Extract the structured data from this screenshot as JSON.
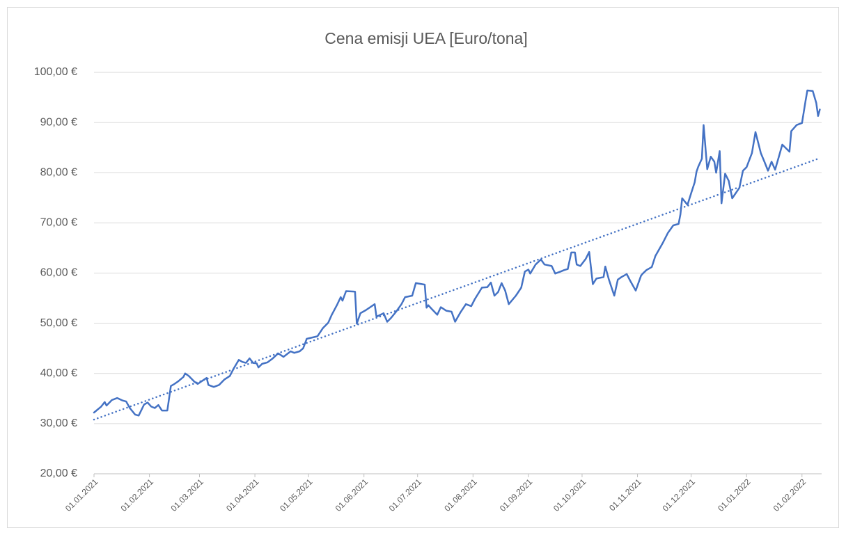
{
  "chart_data": {
    "type": "line",
    "title": "Cena emisji UEA [Euro/tona]",
    "grid": true,
    "xlim": [
      "2021-01-01",
      "2022-02-12"
    ],
    "xticks": [
      {
        "value": "2021-01-01",
        "label": "01.01.2021"
      },
      {
        "value": "2021-02-01",
        "label": "01.02.2021"
      },
      {
        "value": "2021-03-01",
        "label": "01.03.2021"
      },
      {
        "value": "2021-04-01",
        "label": "01.04.2021"
      },
      {
        "value": "2021-05-01",
        "label": "01.05.2021"
      },
      {
        "value": "2021-06-01",
        "label": "01.06.2021"
      },
      {
        "value": "2021-07-01",
        "label": "01.07.2021"
      },
      {
        "value": "2021-08-01",
        "label": "01.08.2021"
      },
      {
        "value": "2021-09-01",
        "label": "01.09.2021"
      },
      {
        "value": "2021-10-01",
        "label": "01.10.2021"
      },
      {
        "value": "2021-11-01",
        "label": "01.11.2021"
      },
      {
        "value": "2021-12-01",
        "label": "01.12.2021"
      },
      {
        "value": "2022-01-01",
        "label": "01.01.2022"
      },
      {
        "value": "2022-02-01",
        "label": "01.02.2022"
      }
    ],
    "ylim": [
      20,
      100
    ],
    "yticks": [
      {
        "value": 20,
        "label": "20,00 €"
      },
      {
        "value": 30,
        "label": "30,00 €"
      },
      {
        "value": 40,
        "label": "40,00 €"
      },
      {
        "value": 50,
        "label": "50,00 €"
      },
      {
        "value": 60,
        "label": "60,00 €"
      },
      {
        "value": 70,
        "label": "70,00 €"
      },
      {
        "value": 80,
        "label": "80,00 €"
      },
      {
        "value": 90,
        "label": "90,00 €"
      },
      {
        "value": 100,
        "label": "100,00 €"
      }
    ],
    "series": [
      {
        "color": "#4472c4",
        "style": "solid",
        "x": [
          "2021-01-01",
          "2021-01-05",
          "2021-01-07",
          "2021-01-08",
          "2021-01-11",
          "2021-01-14",
          "2021-01-17",
          "2021-01-19",
          "2021-01-21",
          "2021-01-24",
          "2021-01-26",
          "2021-01-29",
          "2021-01-31",
          "2021-02-02",
          "2021-02-04",
          "2021-02-06",
          "2021-02-08",
          "2021-02-11",
          "2021-02-13",
          "2021-02-15",
          "2021-02-17",
          "2021-02-20",
          "2021-02-21",
          "2021-02-23",
          "2021-02-26",
          "2021-02-28",
          "2021-03-02",
          "2021-03-05",
          "2021-03-06",
          "2021-03-09",
          "2021-03-12",
          "2021-03-15",
          "2021-03-18",
          "2021-03-20",
          "2021-03-23",
          "2021-03-25",
          "2021-03-27",
          "2021-03-29",
          "2021-03-31",
          "2021-04-02",
          "2021-04-03",
          "2021-04-05",
          "2021-04-08",
          "2021-04-11",
          "2021-04-14",
          "2021-04-17",
          "2021-04-21",
          "2021-04-23",
          "2021-04-26",
          "2021-04-28",
          "2021-04-30",
          "2021-05-06",
          "2021-05-09",
          "2021-05-12",
          "2021-05-14",
          "2021-05-17",
          "2021-05-19",
          "2021-05-20",
          "2021-05-22",
          "2021-05-27",
          "2021-05-28",
          "2021-05-30",
          "2021-06-02",
          "2021-06-07",
          "2021-06-08",
          "2021-06-12",
          "2021-06-14",
          "2021-06-16",
          "2021-06-19",
          "2021-06-22",
          "2021-06-24",
          "2021-06-28",
          "2021-06-30",
          "2021-07-05",
          "2021-07-06",
          "2021-07-07",
          "2021-07-09",
          "2021-07-12",
          "2021-07-14",
          "2021-07-17",
          "2021-07-20",
          "2021-07-22",
          "2021-07-25",
          "2021-07-28",
          "2021-07-31",
          "2021-08-02",
          "2021-08-06",
          "2021-08-09",
          "2021-08-11",
          "2021-08-13",
          "2021-08-15",
          "2021-08-17",
          "2021-08-19",
          "2021-08-21",
          "2021-08-25",
          "2021-08-28",
          "2021-08-30",
          "2021-09-01",
          "2021-09-02",
          "2021-09-05",
          "2021-09-08",
          "2021-09-10",
          "2021-09-14",
          "2021-09-16",
          "2021-09-19",
          "2021-09-21",
          "2021-09-23",
          "2021-09-25",
          "2021-09-27",
          "2021-09-28",
          "2021-09-30",
          "2021-10-03",
          "2021-10-05",
          "2021-10-07",
          "2021-10-09",
          "2021-10-13",
          "2021-10-14",
          "2021-10-16",
          "2021-10-19",
          "2021-10-21",
          "2021-10-23",
          "2021-10-26",
          "2021-10-28",
          "2021-10-31",
          "2021-11-03",
          "2021-11-04",
          "2021-11-06",
          "2021-11-09",
          "2021-11-11",
          "2021-11-15",
          "2021-11-18",
          "2021-11-21",
          "2021-11-24",
          "2021-11-25",
          "2021-11-26",
          "2021-11-29",
          "2021-12-01",
          "2021-12-03",
          "2021-12-04",
          "2021-12-05",
          "2021-12-07",
          "2021-12-08",
          "2021-12-10",
          "2021-12-12",
          "2021-12-14",
          "2021-12-15",
          "2021-12-17",
          "2021-12-18",
          "2021-12-20",
          "2021-12-22",
          "2021-12-24",
          "2021-12-28",
          "2021-12-30",
          "2022-01-01",
          "2022-01-04",
          "2022-01-06",
          "2022-01-09",
          "2022-01-11",
          "2022-01-13",
          "2022-01-15",
          "2022-01-17",
          "2022-01-19",
          "2022-01-21",
          "2022-01-23",
          "2022-01-25",
          "2022-01-26",
          "2022-01-29",
          "2022-02-01",
          "2022-02-03",
          "2022-02-04",
          "2022-02-07",
          "2022-02-09",
          "2022-02-10",
          "2022-02-11"
        ],
        "values": [
          32.2,
          33.4,
          34.3,
          33.6,
          34.7,
          35.1,
          34.6,
          34.4,
          33.1,
          31.8,
          31.6,
          33.8,
          34.2,
          33.4,
          33.1,
          33.7,
          32.6,
          32.6,
          37.5,
          37.9,
          38.4,
          39.3,
          40.0,
          39.5,
          38.4,
          37.9,
          38.4,
          39.1,
          37.7,
          37.3,
          37.7,
          38.8,
          39.5,
          40.9,
          42.7,
          42.3,
          42.1,
          43.0,
          42.1,
          42.0,
          41.2,
          41.9,
          42.2,
          43.0,
          44.0,
          43.3,
          44.4,
          44.1,
          44.4,
          45.0,
          46.9,
          47.4,
          49.0,
          50.1,
          51.7,
          53.7,
          55.2,
          54.5,
          56.4,
          56.3,
          49.9,
          52.0,
          52.6,
          53.8,
          51.3,
          52.0,
          50.3,
          51.0,
          52.3,
          53.8,
          55.2,
          55.5,
          58.0,
          57.7,
          53.1,
          53.6,
          52.8,
          51.7,
          53.2,
          52.5,
          52.3,
          50.3,
          52.2,
          53.8,
          53.4,
          54.8,
          57.1,
          57.2,
          58.1,
          55.5,
          56.2,
          58.0,
          56.5,
          53.8,
          55.5,
          57.1,
          60.3,
          60.7,
          59.9,
          61.7,
          62.7,
          61.7,
          61.4,
          59.9,
          60.3,
          60.6,
          60.8,
          64.1,
          64.1,
          61.7,
          61.4,
          62.8,
          64.2,
          57.8,
          58.9,
          59.2,
          61.3,
          58.7,
          55.5,
          58.7,
          59.2,
          59.8,
          58.4,
          56.5,
          59.5,
          59.9,
          60.6,
          61.2,
          63.4,
          65.9,
          68.0,
          69.5,
          69.8,
          71.7,
          74.9,
          73.6,
          75.9,
          78.1,
          80.2,
          81.2,
          82.8,
          89.5,
          80.7,
          83.2,
          82.2,
          80.0,
          84.3,
          73.9,
          79.8,
          78.4,
          74.9,
          77.0,
          80.4,
          81.1,
          83.9,
          88.1,
          83.9,
          82.2,
          80.4,
          82.2,
          80.6,
          83.1,
          85.6,
          84.9,
          84.2,
          88.3,
          89.5,
          89.9,
          94.3,
          96.4,
          96.3,
          93.9,
          91.3,
          92.6
        ]
      },
      {
        "color": "#4472c4",
        "style": "dotted",
        "x": [
          "2021-01-01",
          "2022-02-11"
        ],
        "values": [
          30.8,
          82.9
        ]
      }
    ]
  }
}
